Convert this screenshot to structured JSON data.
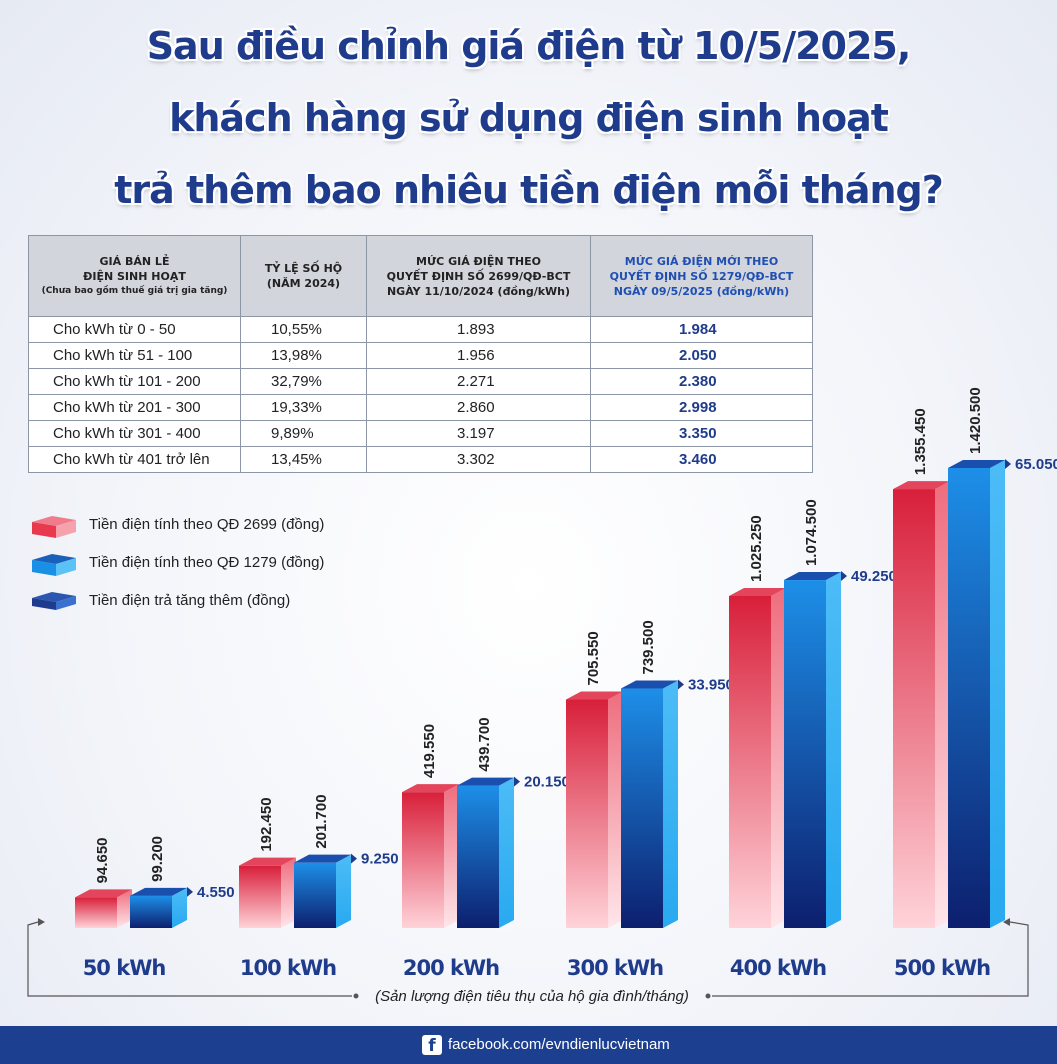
{
  "title_lines": [
    "Sau điều chỉnh giá điện từ 10/5/2025,",
    "khách hàng sử dụng điện sinh hoạt",
    "trả thêm bao nhiêu tiền điện mỗi tháng?"
  ],
  "table": {
    "headers": [
      {
        "lines": [
          "GIÁ BÁN LẺ",
          "ĐIỆN SINH HOẠT"
        ],
        "sub": "(Chưa bao gồm thuế giá trị gia tăng)"
      },
      {
        "lines": [
          "TỶ LỆ SỐ HỘ",
          "(NĂM 2024)"
        ]
      },
      {
        "lines": [
          "MỨC GIÁ ĐIỆN THEO",
          "QUYẾT ĐỊNH SỐ 2699/QĐ-BCT",
          "NGÀY 11/10/2024 (đồng/kWh)"
        ]
      },
      {
        "lines": [
          "MỨC GIÁ ĐIỆN MỚI THEO",
          "QUYẾT ĐỊNH SỐ 1279/QĐ-BCT",
          "NGÀY 09/5/2025 (đồng/kWh)"
        ]
      }
    ],
    "rows": [
      [
        "Cho kWh từ 0 - 50",
        "10,55%",
        "1.893",
        "1.984"
      ],
      [
        "Cho kWh từ  51 - 100",
        "13,98%",
        "1.956",
        "2.050"
      ],
      [
        "Cho kWh từ 101 - 200",
        "32,79%",
        "2.271",
        "2.380"
      ],
      [
        "Cho kWh từ 201 - 300",
        "19,33%",
        "2.860",
        "2.998"
      ],
      [
        "Cho kWh từ 301 - 400",
        "9,89%",
        "3.197",
        "3.350"
      ],
      [
        "Cho kWh từ 401 trở lên",
        "13,45%",
        "3.302",
        "3.460"
      ]
    ]
  },
  "legend": [
    "Tiền điện tính theo QĐ 2699 (đồng)",
    "Tiền điện tính theo QĐ 1279 (đồng)",
    "Tiền điện trả tăng thêm (đồng)"
  ],
  "chart_data": {
    "type": "bar",
    "categories": [
      "50 kWh",
      "100 kWh",
      "200 kWh",
      "300 kWh",
      "400 kWh",
      "500 kWh"
    ],
    "series": [
      {
        "name": "Tiền điện tính theo QĐ 2699 (đồng)",
        "values": [
          94650,
          192450,
          419550,
          705550,
          1025250,
          1355450
        ],
        "labels": [
          "94.650",
          "192.450",
          "419.550",
          "705.550",
          "1.025.250",
          "1.355.450"
        ]
      },
      {
        "name": "Tiền điện tính theo QĐ 1279 (đồng)",
        "values": [
          99200,
          201700,
          439700,
          739500,
          1074500,
          1420500
        ],
        "labels": [
          "99.200",
          "201.700",
          "439.700",
          "739.500",
          "1.074.500",
          "1.420.500"
        ]
      }
    ],
    "increase": {
      "name": "Tiền điện trả tăng thêm (đồng)",
      "values": [
        4550,
        9250,
        20150,
        33950,
        49250,
        65050
      ],
      "labels": [
        "4.550",
        "9.250",
        "20.150",
        "33.950",
        "49.250",
        "65.050"
      ]
    },
    "xlabel": "(Sản lượng điện tiêu thụ của hộ gia đình/tháng)",
    "ylim": [
      0,
      1420500
    ],
    "colors": {
      "old": "#e8394f",
      "new": "#1a8fe6",
      "increase": "#1f3c8c"
    }
  },
  "footer": {
    "text": "facebook.com/evndienlucvietnam",
    "icon": "facebook-icon"
  }
}
